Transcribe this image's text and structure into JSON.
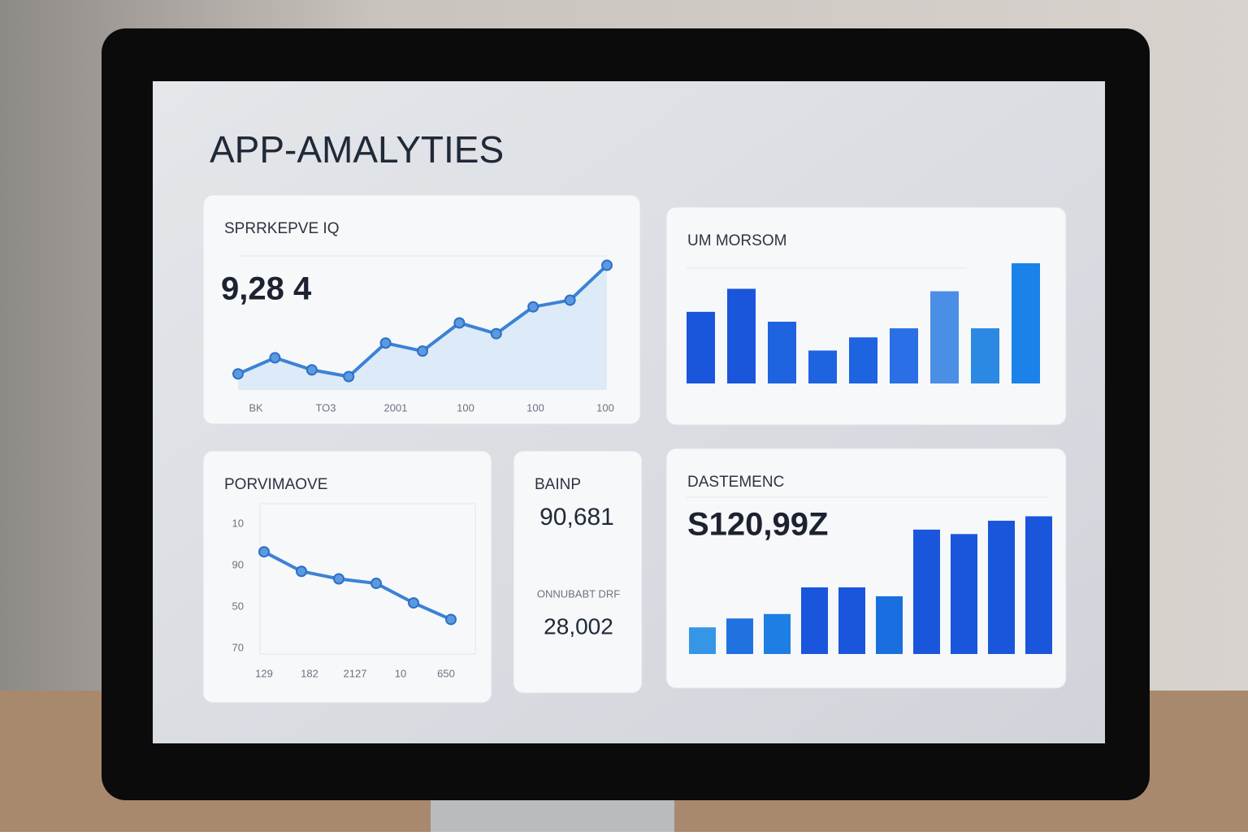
{
  "header": {
    "title": "APP-AMALYTIES"
  },
  "cards": [
    {
      "title": "SPRRKEPVE IQ",
      "value": "9,28 4",
      "type": "line",
      "ymax": 100,
      "values": [
        12,
        24,
        15,
        10,
        35,
        29,
        50,
        42,
        62,
        67,
        93
      ],
      "x_labels": [
        "BK",
        "TO3",
        "2001",
        "100",
        "100",
        "100"
      ]
    },
    {
      "title": "UM MORSOM",
      "type": "bar",
      "ymax": 150,
      "values": [
        87,
        115,
        75,
        40,
        56,
        67,
        112,
        67,
        146
      ],
      "colors": [
        "#1a56db",
        "#1a56db",
        "#1e63e0",
        "#1e63e0",
        "#1e63e0",
        "#2a6fe6",
        "#4a8ee6",
        "#2b88e3",
        "#1a82e8"
      ]
    },
    {
      "title": "PORVIMAOVE",
      "type": "line",
      "ymax": 100,
      "values": [
        68,
        55,
        50,
        47,
        34,
        23
      ],
      "y_labels": [
        "10",
        "90",
        "50",
        "70"
      ],
      "x_labels": [
        "129",
        "182",
        "2127",
        "10",
        "650"
      ]
    },
    {
      "title": "BAINP",
      "value": "90,681",
      "label": "ONNUBABT DRF",
      "value2": "28,002"
    },
    {
      "title": "DASTEMENC",
      "value": "S120,99Z",
      "type": "bar",
      "ymax": 160,
      "values": [
        30,
        40,
        45,
        75,
        75,
        65,
        140,
        135,
        150,
        155
      ],
      "colors": [
        "#3596e6",
        "#1f72e0",
        "#1d7ee3",
        "#1a56db",
        "#1a56db",
        "#1a6fe0",
        "#1a56db",
        "#1a56db",
        "#1a56db",
        "#1a56db"
      ]
    }
  ]
}
